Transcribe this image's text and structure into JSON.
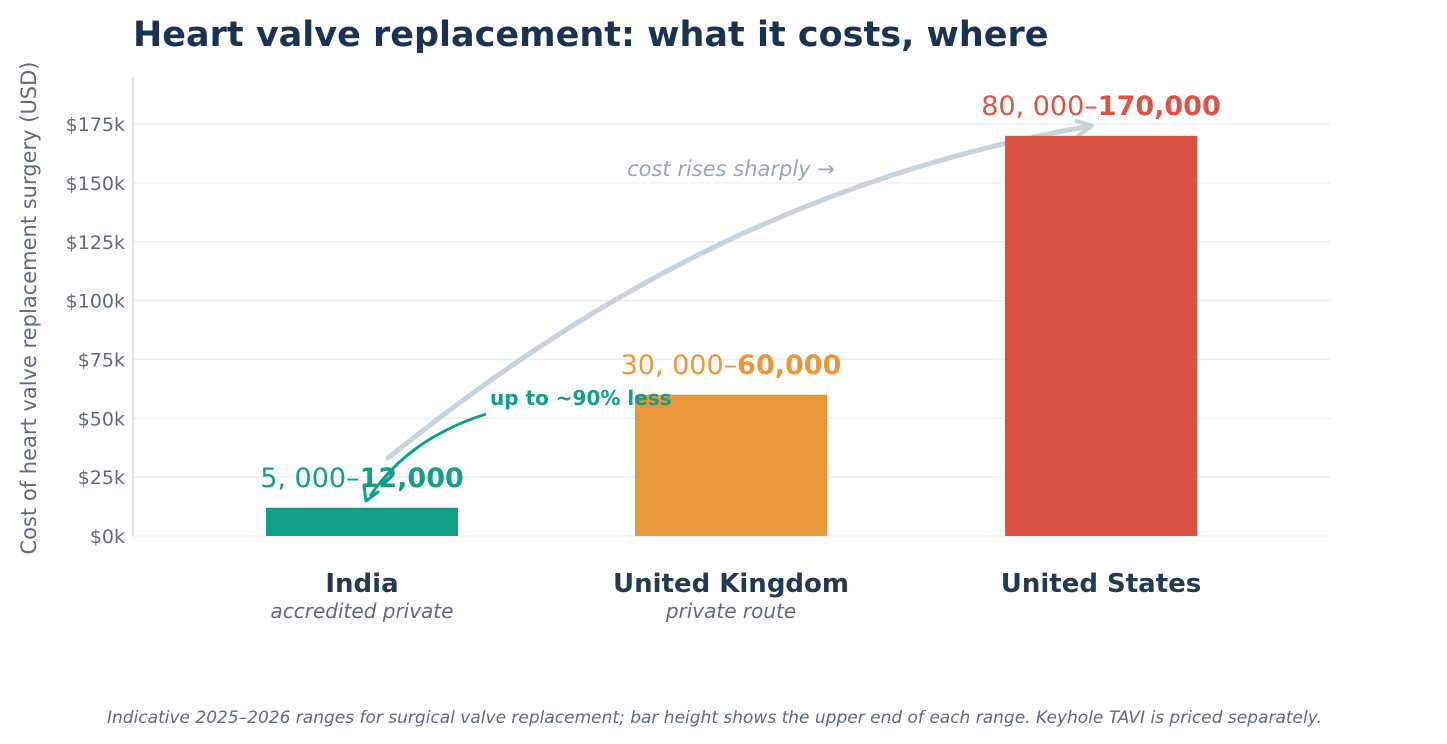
{
  "chart_data": {
    "type": "bar",
    "title": "Heart valve replacement: what it costs, where",
    "ylabel": "Cost of heart valve replacement surgery (USD)",
    "ylim": [
      0,
      195000
    ],
    "yticks": [
      "$0k",
      "$25k",
      "$50k",
      "$75k",
      "$100k",
      "$125k",
      "$150k",
      "$175k"
    ],
    "ytick_values": [
      0,
      25000,
      50000,
      75000,
      100000,
      125000,
      150000,
      175000
    ],
    "grid": true,
    "categories": [
      "India",
      "United Kingdom",
      "United States"
    ],
    "subtitles": [
      "accredited private",
      "private route"
    ],
    "values": [
      12000,
      60000,
      170000
    ],
    "range_low_labels": [
      "5, 000–",
      "30, 000–",
      "80, 000–"
    ],
    "range_high_labels": [
      "12,000",
      "60,000",
      "170,000"
    ],
    "colors": [
      "#0fa085",
      "#e8983b",
      "#db5247"
    ],
    "annotations": {
      "trend": "cost rises sharply →",
      "saving": "up to ~90% less"
    },
    "footnote": "Indicative 2025–2026 ranges for surgical valve replacement; bar height shows the upper end of each range. Keyhole TAVI is priced separately."
  }
}
